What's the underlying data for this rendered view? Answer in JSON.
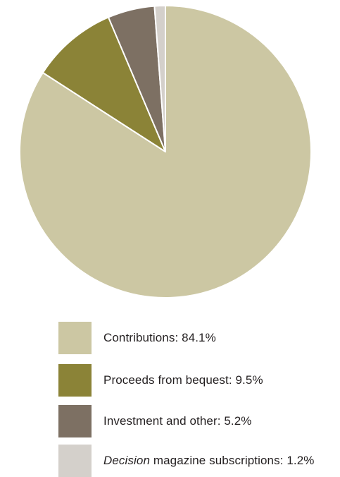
{
  "chart_data": {
    "type": "pie",
    "title": "",
    "start_angle_deg": 0,
    "direction": "clockwise",
    "slices": [
      {
        "label": "Contributions",
        "value": 84.1,
        "value_label": "84.1%",
        "color": "#ccc7a3"
      },
      {
        "label": "Proceeds from bequest",
        "value": 9.5,
        "value_label": "9.5%",
        "color": "#8b8337"
      },
      {
        "label": "Investment and other",
        "value": 5.2,
        "value_label": "5.2%",
        "color": "#7d7063"
      },
      {
        "label_em": "Decision",
        "label_rest": " magazine subscriptions",
        "value": 1.2,
        "value_label": "1.2%",
        "color": "#d4d0cb"
      }
    ],
    "legend": {
      "placement": "bottom",
      "items": [
        {
          "text": "Contributions: 84.1%"
        },
        {
          "text": "Proceeds from bequest: 9.5%"
        },
        {
          "text": "Investment and other: 5.2%"
        },
        {
          "em": "Decision",
          "rest": " magazine subscriptions: 1.2%"
        }
      ]
    }
  }
}
